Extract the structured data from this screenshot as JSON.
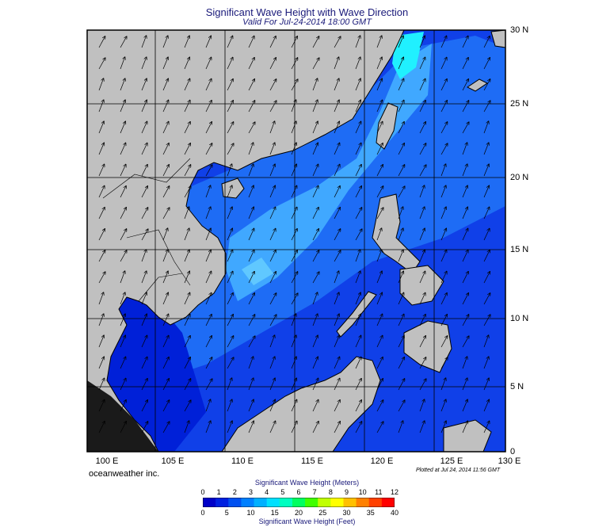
{
  "header": {
    "title": "Significant Wave Height with Wave Direction",
    "subtitle": "Valid For Jul-24-2014 18:00 GMT"
  },
  "axes": {
    "lon_labels": [
      "100 E",
      "105 E",
      "110 E",
      "115 E",
      "120 E",
      "125 E",
      "130 E"
    ],
    "lat_labels": [
      "30 N",
      "25 N",
      "20 N",
      "15 N",
      "10 N",
      "5 N",
      "0"
    ]
  },
  "footer": {
    "credit": "oceanweather inc.",
    "plotted": "Plotted at Jul 24, 2014 11:56 GMT"
  },
  "legend": {
    "meters_title": "Significant Wave Height (Meters)",
    "feet_title": "Significant Wave Height (Feet)",
    "meters_ticks": [
      "0",
      "1",
      "2",
      "3",
      "4",
      "5",
      "6",
      "7",
      "8",
      "9",
      "10",
      "11",
      "12"
    ],
    "feet_ticks": [
      "0",
      "5",
      "10",
      "15",
      "20",
      "25",
      "30",
      "35",
      "40"
    ],
    "colors": [
      "#0000c8",
      "#0020e0",
      "#0050f0",
      "#0080ff",
      "#00b0ff",
      "#00e0ff",
      "#00ffc0",
      "#00ff60",
      "#40ff00",
      "#c0ff00",
      "#ffff00",
      "#ffc000",
      "#ff8000",
      "#ff4000",
      "#ff0000"
    ]
  },
  "colors": {
    "land": "#c0c0c0",
    "sea_low": "#1040e8",
    "sea_mid": "#1e6cf5",
    "sea_high": "#40a8ff",
    "sea_peak": "#20f0ff",
    "title": "#1a1a7a"
  }
}
